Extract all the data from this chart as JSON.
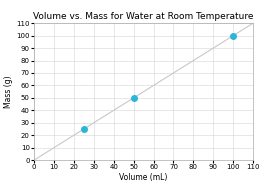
{
  "title": "Volume vs. Mass for Water at Room Temperature",
  "xlabel": "Volume (mL)",
  "ylabel": "Mass (g)",
  "xlim": [
    0,
    110
  ],
  "ylim": [
    0,
    110
  ],
  "xticks": [
    0,
    10,
    20,
    30,
    40,
    50,
    60,
    70,
    80,
    90,
    100,
    110
  ],
  "yticks": [
    0,
    10,
    20,
    30,
    40,
    50,
    60,
    70,
    80,
    90,
    100,
    110
  ],
  "scatter_x": [
    25,
    50,
    100
  ],
  "scatter_y": [
    25,
    50,
    100
  ],
  "scatter_color": "#29b6d8",
  "line_x": [
    0,
    110
  ],
  "line_y": [
    0,
    110
  ],
  "line_color": "#c8c8c8",
  "line_width": 0.8,
  "marker_size": 4,
  "background_color": "#ffffff",
  "grid_color": "#d4d4d4",
  "title_fontsize": 6.5,
  "axis_label_fontsize": 5.5,
  "tick_fontsize": 5
}
